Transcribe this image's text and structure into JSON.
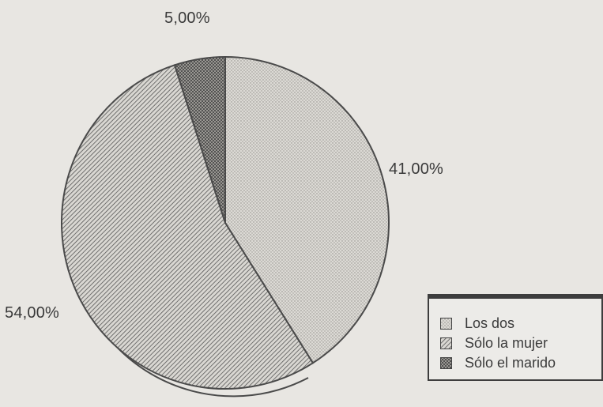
{
  "chart_data": {
    "type": "pie",
    "slices": [
      {
        "label": "Los dos",
        "value": 41.0,
        "value_label": "41,00%",
        "pattern": "dots",
        "fill": "#d8d6d1"
      },
      {
        "label": "Sólo la mujer",
        "value": 54.0,
        "value_label": "54,00%",
        "pattern": "diagonal-hatch",
        "fill": "#bdbab4"
      },
      {
        "label": "Sólo el marido",
        "value": 5.0,
        "value_label": "5,00%",
        "pattern": "crosshatch",
        "fill": "#8e8b86"
      }
    ],
    "start_angle": "12 o'clock",
    "direction": "clockwise",
    "legend_position": "bottom-right",
    "colors": {
      "background": "#e8e6e2",
      "outline": "#4a4a4a"
    }
  }
}
